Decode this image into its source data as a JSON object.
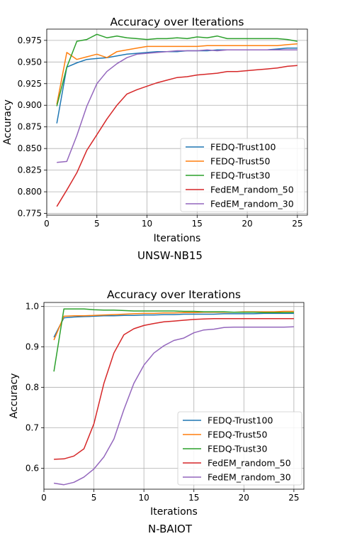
{
  "chart_data": [
    {
      "type": "line",
      "title": "Accuracy over Iterations",
      "xlabel": "Iterations",
      "ylabel": "Accuracy",
      "caption": "UNSW-NB15",
      "xlim": [
        0,
        26
      ],
      "ylim": [
        0.773,
        0.988
      ],
      "xticks": [
        "0",
        "5",
        "10",
        "15",
        "20",
        "25"
      ],
      "yticks": [
        "0.775",
        "0.800",
        "0.825",
        "0.850",
        "0.875",
        "0.900",
        "0.925",
        "0.950",
        "0.975"
      ],
      "grid": true,
      "legend": "bottom-right",
      "x": [
        1,
        2,
        3,
        4,
        5,
        6,
        7,
        8,
        9,
        10,
        11,
        12,
        13,
        14,
        15,
        16,
        17,
        18,
        19,
        20,
        21,
        22,
        23,
        24,
        25
      ],
      "series": [
        {
          "name": "FEDQ-Trust100",
          "color": "#1f77b4",
          "values": [
            0.879,
            0.944,
            0.949,
            0.953,
            0.954,
            0.955,
            0.957,
            0.959,
            0.96,
            0.961,
            0.962,
            0.962,
            0.962,
            0.963,
            0.963,
            0.963,
            0.964,
            0.964,
            0.964,
            0.964,
            0.964,
            0.964,
            0.965,
            0.966,
            0.966
          ]
        },
        {
          "name": "FEDQ-Trust50",
          "color": "#ff7f0e",
          "values": [
            0.901,
            0.961,
            0.953,
            0.956,
            0.959,
            0.955,
            0.962,
            0.964,
            0.966,
            0.968,
            0.968,
            0.968,
            0.968,
            0.968,
            0.968,
            0.969,
            0.969,
            0.969,
            0.969,
            0.969,
            0.969,
            0.969,
            0.969,
            0.97,
            0.971
          ]
        },
        {
          "name": "FEDQ-Trust30",
          "color": "#2ca02c",
          "values": [
            0.899,
            0.944,
            0.974,
            0.976,
            0.982,
            0.978,
            0.98,
            0.978,
            0.977,
            0.976,
            0.977,
            0.977,
            0.978,
            0.977,
            0.979,
            0.978,
            0.98,
            0.977,
            0.977,
            0.977,
            0.977,
            0.977,
            0.977,
            0.976,
            0.974
          ]
        },
        {
          "name": "FedEM_random_50",
          "color": "#d62728",
          "values": [
            0.783,
            0.802,
            0.822,
            0.848,
            0.866,
            0.884,
            0.9,
            0.913,
            0.918,
            0.922,
            0.926,
            0.929,
            0.932,
            0.933,
            0.935,
            0.936,
            0.937,
            0.939,
            0.939,
            0.94,
            0.941,
            0.942,
            0.943,
            0.945,
            0.946
          ]
        },
        {
          "name": "FedEM_random_30",
          "color": "#9467bd",
          "values": [
            0.834,
            0.835,
            0.865,
            0.899,
            0.925,
            0.939,
            0.948,
            0.955,
            0.959,
            0.96,
            0.961,
            0.962,
            0.963,
            0.963,
            0.963,
            0.964,
            0.963,
            0.964,
            0.964,
            0.964,
            0.964,
            0.964,
            0.964,
            0.964,
            0.964
          ]
        }
      ]
    },
    {
      "type": "line",
      "title": "Accuracy over Iterations",
      "xlabel": "Iterations",
      "ylabel": "Accuracy",
      "caption": "N-BAIOT",
      "xlim": [
        0,
        26
      ],
      "ylim": [
        0.548,
        1.01
      ],
      "xticks": [
        "0",
        "5",
        "10",
        "15",
        "20",
        "25"
      ],
      "yticks": [
        "0.6",
        "0.7",
        "0.8",
        "0.9",
        "1.0"
      ],
      "grid": true,
      "legend": "bottom-right",
      "x": [
        1,
        2,
        3,
        4,
        5,
        6,
        7,
        8,
        9,
        10,
        11,
        12,
        13,
        14,
        15,
        16,
        17,
        18,
        19,
        20,
        21,
        22,
        23,
        24,
        25
      ],
      "series": [
        {
          "name": "FEDQ-Trust100",
          "color": "#1f77b4",
          "values": [
            0.924,
            0.972,
            0.974,
            0.975,
            0.976,
            0.977,
            0.977,
            0.978,
            0.978,
            0.979,
            0.979,
            0.98,
            0.98,
            0.981,
            0.981,
            0.981,
            0.981,
            0.982,
            0.982,
            0.982,
            0.982,
            0.983,
            0.983,
            0.983,
            0.983
          ]
        },
        {
          "name": "FEDQ-Trust50",
          "color": "#ff7f0e",
          "values": [
            0.917,
            0.976,
            0.977,
            0.977,
            0.978,
            0.979,
            0.98,
            0.981,
            0.982,
            0.983,
            0.983,
            0.984,
            0.984,
            0.985,
            0.985,
            0.986,
            0.986,
            0.986,
            0.986,
            0.987,
            0.987,
            0.987,
            0.987,
            0.988,
            0.988
          ]
        },
        {
          "name": "FEDQ-Trust30",
          "color": "#2ca02c",
          "values": [
            0.839,
            0.994,
            0.994,
            0.994,
            0.992,
            0.991,
            0.991,
            0.99,
            0.989,
            0.989,
            0.989,
            0.989,
            0.989,
            0.988,
            0.988,
            0.987,
            0.987,
            0.987,
            0.986,
            0.986,
            0.986,
            0.985,
            0.985,
            0.985,
            0.985
          ]
        },
        {
          "name": "FedEM_random_50",
          "color": "#d62728",
          "values": [
            0.622,
            0.623,
            0.63,
            0.648,
            0.71,
            0.81,
            0.885,
            0.93,
            0.945,
            0.953,
            0.958,
            0.962,
            0.964,
            0.966,
            0.968,
            0.969,
            0.97,
            0.97,
            0.97,
            0.97,
            0.97,
            0.97,
            0.97,
            0.97,
            0.97
          ]
        },
        {
          "name": "FedEM_random_30",
          "color": "#9467bd",
          "values": [
            0.563,
            0.559,
            0.565,
            0.578,
            0.598,
            0.628,
            0.672,
            0.745,
            0.81,
            0.855,
            0.885,
            0.903,
            0.916,
            0.922,
            0.935,
            0.942,
            0.944,
            0.948,
            0.949,
            0.949,
            0.949,
            0.949,
            0.949,
            0.949,
            0.95
          ]
        }
      ]
    }
  ]
}
